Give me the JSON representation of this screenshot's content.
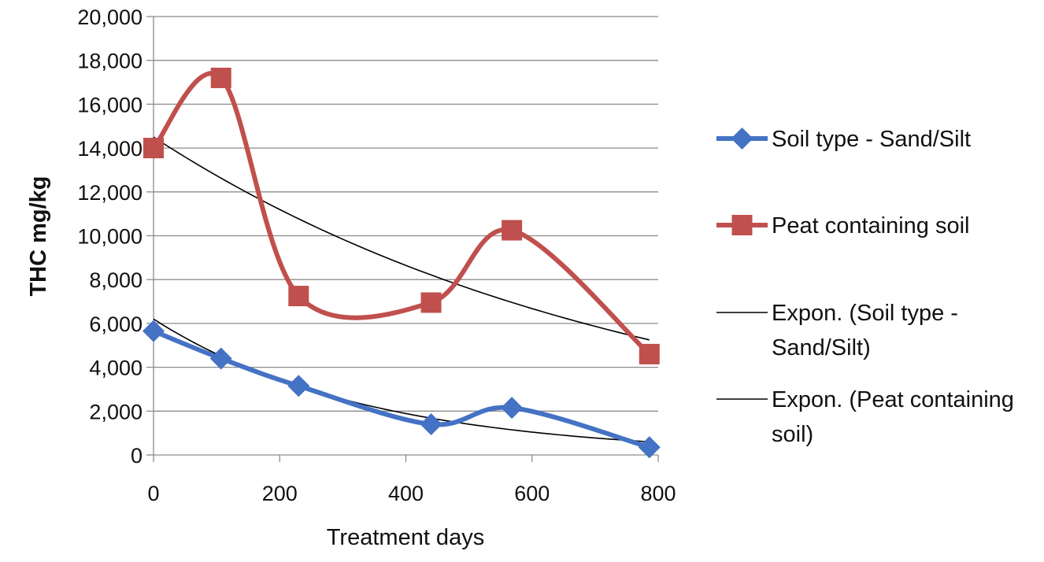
{
  "chart_data": {
    "type": "line",
    "xlabel": "Treatment days",
    "ylabel": "THC mg/kg",
    "xlim": [
      0,
      800
    ],
    "ylim": [
      0,
      20000
    ],
    "x_ticks": [
      0,
      200,
      400,
      600,
      800
    ],
    "x_tick_labels": [
      "0",
      "200",
      "400",
      "600",
      "800"
    ],
    "y_ticks": [
      0,
      2000,
      4000,
      6000,
      8000,
      10000,
      12000,
      14000,
      16000,
      18000,
      20000
    ],
    "y_tick_labels": [
      "0",
      "2,000",
      "4,000",
      "6,000",
      "8,000",
      "10,000",
      "12,000",
      "14,000",
      "16,000",
      "18,000",
      "20,000"
    ],
    "grid": "horizontal",
    "legend_position": "right",
    "series": [
      {
        "name": "Soil type - Sand/Silt",
        "color": "#4472C4",
        "marker": "diamond",
        "smooth": true,
        "x": [
          0,
          107,
          230,
          440,
          568,
          786
        ],
        "y": [
          5650,
          4400,
          3150,
          1400,
          2150,
          350
        ]
      },
      {
        "name": "Peat containing soil",
        "color": "#C0504D",
        "marker": "square",
        "smooth": true,
        "x": [
          0,
          107,
          230,
          440,
          568,
          786
        ],
        "y": [
          14000,
          17200,
          7250,
          6950,
          10250,
          4600
        ]
      }
    ],
    "trendlines": [
      {
        "name": "Expon. (Soil type - Sand/Silt)",
        "type": "exponential",
        "color": "#000000",
        "x_range": [
          0,
          786
        ],
        "y_start": 6200,
        "y_end": 600
      },
      {
        "name": "Expon. (Peat containing soil)",
        "type": "exponential",
        "color": "#000000",
        "x_range": [
          0,
          786
        ],
        "y_start": 14500,
        "y_end": 5250
      }
    ],
    "legend": [
      {
        "line1": "Soil type - Sand/Silt",
        "line2": ""
      },
      {
        "line1": "Peat containing soil",
        "line2": ""
      },
      {
        "line1": "Expon. (Soil type -",
        "line2": "Sand/Silt)"
      },
      {
        "line1": "Expon. (Peat containing",
        "line2": "soil)"
      }
    ]
  }
}
